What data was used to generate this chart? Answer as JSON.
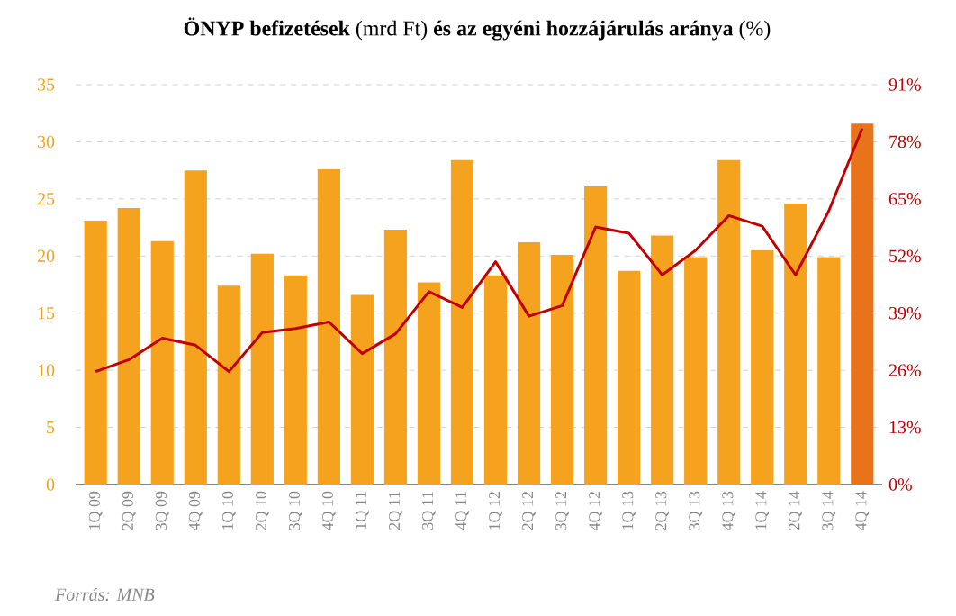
{
  "chart_data": {
    "type": "bar",
    "title": "**ÖNYP befizetések** (mrd Ft) **és az egyéni hozzájárulás aránya** (%)",
    "categories": [
      "1Q 09",
      "2Q 09",
      "3Q 09",
      "4Q 09",
      "1Q 10",
      "2Q 10",
      "3Q 10",
      "4Q 10",
      "1Q 11",
      "2Q 11",
      "3Q 11",
      "4Q 11",
      "1Q 12",
      "2Q 12",
      "3Q 12",
      "4Q 12",
      "1Q 13",
      "2Q 13",
      "3Q 13",
      "4Q 13",
      "1Q 14",
      "2Q 14",
      "3Q 14",
      "4Q 14"
    ],
    "series": [
      {
        "color": "#f5a31e",
        "colors": [
          "#f5a31e",
          "#f5a31e",
          "#f5a31e",
          "#f5a31e",
          "#f5a31e",
          "#f5a31e",
          "#f5a31e",
          "#f5a31e",
          "#f5a31e",
          "#f5a31e",
          "#f5a31e",
          "#f5a31e",
          "#f5a31e",
          "#f5a31e",
          "#f5a31e",
          "#f5a31e",
          "#f5a31e",
          "#f5a31e",
          "#f5a31e",
          "#f5a31e",
          "#f5a31e",
          "#f5a31e",
          "#f5a31e",
          "#e8731a"
        ],
        "values": [
          23.1,
          24.2,
          21.3,
          27.5,
          17.4,
          20.2,
          18.3,
          27.6,
          16.6,
          22.3,
          17.7,
          28.4,
          18.3,
          21.2,
          20.1,
          26.1,
          18.7,
          21.8,
          19.9,
          28.4,
          20.5,
          24.6,
          19.9,
          31.6
        ]
      },
      {
        "type": "line",
        "axis": "y2",
        "color": "#c00000",
        "values": [
          25.7,
          28.4,
          33.3,
          31.7,
          25.7,
          34.6,
          35.5,
          37.0,
          29.8,
          34.3,
          43.9,
          40.3,
          50.7,
          38.3,
          40.7,
          58.6,
          57.2,
          47.7,
          53.3,
          61.2,
          58.8,
          47.7,
          62.3,
          81.0
        ]
      }
    ],
    "ylim": [
      0,
      35
    ],
    "yticks": [
      0,
      5,
      10,
      15,
      20,
      25,
      30,
      35
    ],
    "y2lim": [
      0,
      91
    ],
    "y2ticks": [
      {
        "value": 0,
        "label": "0%"
      },
      {
        "value": 13,
        "label": "13%"
      },
      {
        "value": 26,
        "label": "26%"
      },
      {
        "value": 39,
        "label": "39%"
      },
      {
        "value": 52,
        "label": "52%"
      },
      {
        "value": 65,
        "label": "65%"
      },
      {
        "value": 78,
        "label": "78%"
      },
      {
        "value": 91,
        "label": "91%"
      }
    ],
    "grid": "y",
    "marker": "none",
    "annotations": [
      "Forrás: MNB"
    ]
  }
}
